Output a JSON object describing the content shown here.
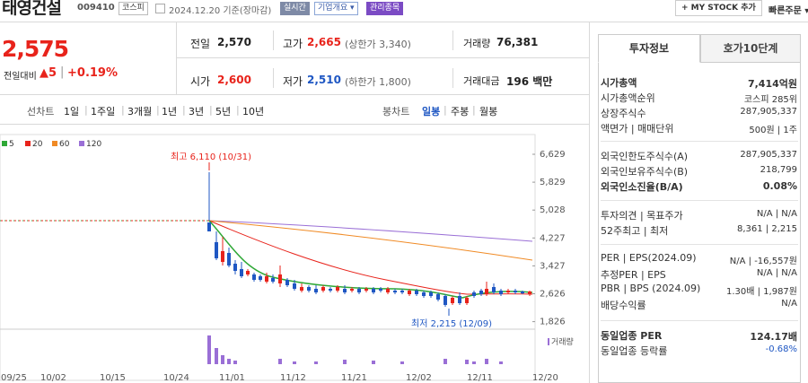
{
  "header": {
    "name": "태영건설",
    "code": "009410",
    "market": "코스피",
    "date": "2024.12.20 기준(장마감)",
    "chip_realtime": "실시간",
    "chip_company": "기업개요 ▾",
    "chip_managed": "관리종목",
    "mystock_btn": "+ MY STOCK 추가",
    "quick_order": "빠른주문 ▾"
  },
  "price": {
    "current": "2,575",
    "change_label": "전일대비",
    "change": "▲5",
    "change_pct": "+0.19%"
  },
  "stats": {
    "prev_label": "전일",
    "prev": "2,570",
    "high_label": "고가",
    "high": "2,665",
    "high_sub": "(상한가 3,340)",
    "volume_label": "거래량",
    "volume": "76,381",
    "open_label": "시가",
    "open": "2,600",
    "low_label": "저가",
    "low": "2,510",
    "low_sub": "(하한가 1,800)",
    "amount_label": "거래대금",
    "amount": "196 백만"
  },
  "toolbar": {
    "line_label": "선차트",
    "periods": [
      "1일",
      "1주일",
      "3개월",
      "1년",
      "3년",
      "5년",
      "10년"
    ],
    "candle_label": "봉차트",
    "candle_periods": [
      "일봉",
      "주봉",
      "월봉"
    ],
    "active_candle": "일봉"
  },
  "legend": [
    "5",
    "20",
    "60",
    "120"
  ],
  "colors": {
    "up": "#e8231b",
    "down": "#1f57c3",
    "ma5": "#2ea836",
    "ma20": "#e8231b",
    "ma60": "#f08a24",
    "ma120": "#9a6fd6"
  },
  "chart_data": {
    "type": "candlestick",
    "y_ticks": [
      "6,629",
      "5,829",
      "5,028",
      "4,227",
      "3,427",
      "2,626",
      "1,826"
    ],
    "x_ticks": [
      "09/25",
      "10/02",
      "10/15",
      "10/24",
      "11/01",
      "11/12",
      "11/21",
      "12/02",
      "12/11",
      "12/20"
    ],
    "ylim": [
      1826,
      6629
    ],
    "annotation_high": "최고 6,110 (10/31)",
    "annotation_low": "최저 2,215 (12/09)",
    "volume_label": "거래량"
  },
  "panel": {
    "tab_info": "투자정보",
    "tab_quote": "호가10단계",
    "rows1": [
      {
        "label": "시가총액",
        "value": "7,414억원"
      },
      {
        "label": "시가총액순위",
        "value": "코스피 285위"
      },
      {
        "label": "상장주식수",
        "value": "287,905,337"
      },
      {
        "label": "액면가 | 매매단위",
        "value": "500원 | 1주"
      }
    ],
    "rows2": [
      {
        "label": "외국인한도주식수(A)",
        "value": "287,905,337"
      },
      {
        "label": "외국인보유주식수(B)",
        "value": "218,799"
      },
      {
        "label": "외국인소진율(B/A)",
        "value": "0.08%"
      }
    ],
    "rows3": [
      {
        "label": "투자의견 | 목표주가",
        "value": "N/A | N/A"
      },
      {
        "label": "52주최고 | 최저",
        "value": "8,361 | 2,215"
      }
    ],
    "rows4": [
      {
        "label": "PER | EPS(2024.09)",
        "value": "N/A | -16,557원"
      },
      {
        "label": "추정PER | EPS",
        "value": "N/A | N/A"
      },
      {
        "label": "PBR | BPS (2024.09)",
        "value": "1.30배 | 1,987원"
      },
      {
        "label": "배당수익률",
        "value": "N/A"
      }
    ],
    "rows5": [
      {
        "label": "동일업종 PER",
        "value": "124.17배"
      },
      {
        "label": "동일업종 등락률",
        "value": "-0.68%"
      }
    ]
  }
}
